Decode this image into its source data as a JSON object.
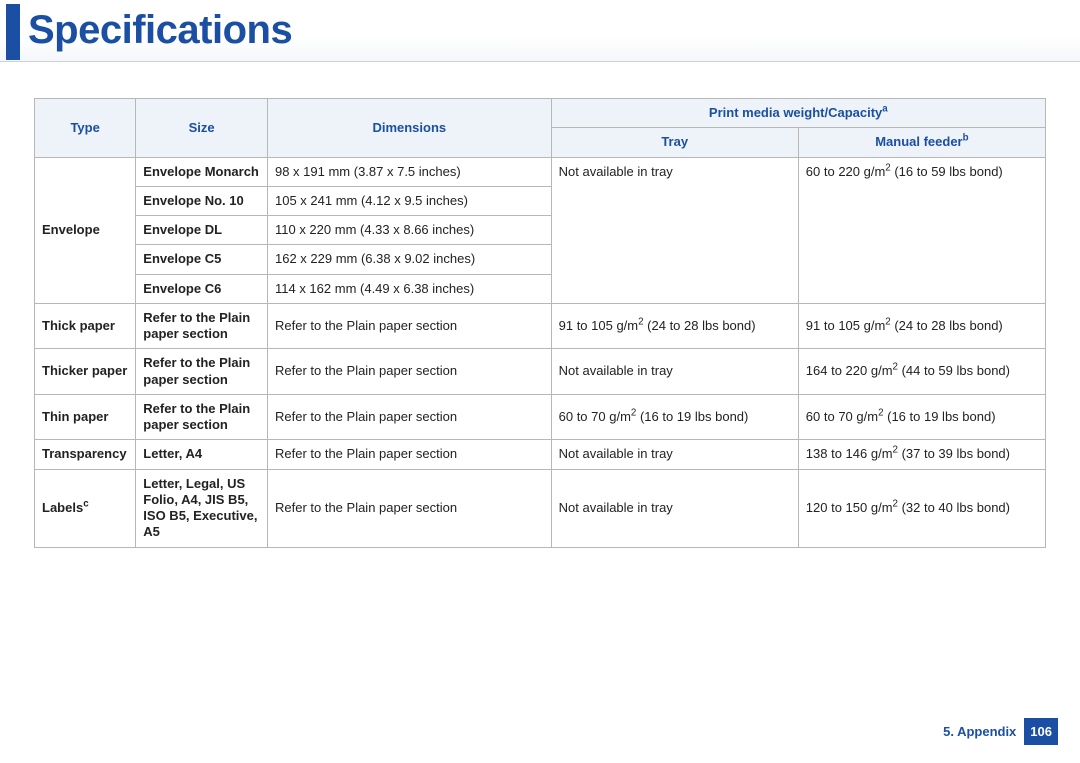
{
  "title": "Specifications",
  "headers": {
    "type": "Type",
    "size": "Size",
    "dimensions": "Dimensions",
    "capacity_group": "Print media weight/Capacity",
    "capacity_sup": "a",
    "tray": "Tray",
    "manual": "Manual feeder",
    "manual_sup": "b"
  },
  "envelope": {
    "type": "Envelope",
    "tray": "Not available in tray",
    "manual_main": "60 to 220 g/m",
    "manual_sup": "2",
    "manual_after": " (16 to 59 lbs bond)",
    "rows": [
      {
        "size": "Envelope Monarch",
        "dim": "98 x 191 mm (3.87 x 7.5 inches)"
      },
      {
        "size": "Envelope No. 10",
        "dim": "105 x 241 mm (4.12 x 9.5 inches)"
      },
      {
        "size": "Envelope DL",
        "dim": "110 x 220 mm (4.33 x 8.66 inches)"
      },
      {
        "size": "Envelope C5",
        "dim": "162 x 229 mm (6.38 x 9.02 inches)"
      },
      {
        "size": "Envelope C6",
        "dim": "114 x 162 mm (4.49 x 6.38 inches)"
      }
    ]
  },
  "thick": {
    "type": "Thick paper",
    "size": "Refer to the Plain paper section",
    "dim": "Refer to the Plain paper section",
    "tray_main": "91 to 105 g/m",
    "tray_sup": "2",
    "tray_after": " (24 to 28 lbs bond)",
    "man_main": "91 to 105 g/m",
    "man_sup": "2",
    "man_after": " (24 to 28 lbs bond)"
  },
  "thicker": {
    "type": "Thicker paper",
    "size": "Refer to the Plain paper section",
    "dim": "Refer to the Plain paper section",
    "tray": "Not available in tray",
    "man_main": "164 to 220 g/m",
    "man_sup": "2",
    "man_after": " (44 to 59 lbs bond)"
  },
  "thin": {
    "type": "Thin paper",
    "size": "Refer to the Plain paper section",
    "dim": "Refer to the Plain paper section",
    "tray_main": "60 to 70 g/m",
    "tray_sup": "2",
    "tray_after": " (16 to 19 lbs bond)",
    "man_main": "60 to 70 g/m",
    "man_sup": "2",
    "man_after": " (16 to 19 lbs bond)"
  },
  "transparency": {
    "type": "Transparency",
    "size": "Letter, A4",
    "dim": "Refer to the Plain paper section",
    "tray": "Not available in tray",
    "man_main": "138 to 146 g/m",
    "man_sup": "2",
    "man_after": " (37 to 39 lbs bond)"
  },
  "labels": {
    "type_main": "Labels",
    "type_sup": "c",
    "size": "Letter, Legal, US Folio, A4, JIS B5, ISO B5, Executive, A5",
    "dim": "Refer to the Plain paper section",
    "tray": "Not available in tray",
    "man_main": "120 to 150 g/m",
    "man_sup": "2",
    "man_after": " (32 to 40 lbs bond)"
  },
  "footer": {
    "chapter": "5.  Appendix",
    "page": "106"
  },
  "colors": {
    "accent": "#1a4fa3",
    "header_bg": "#eef3f9",
    "border": "#b7b7b7"
  }
}
